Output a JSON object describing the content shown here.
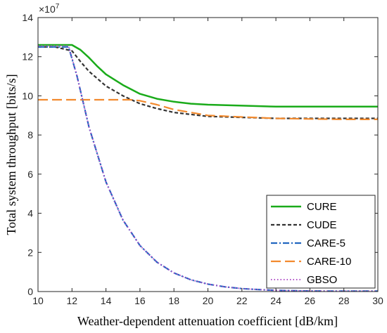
{
  "chart_data": {
    "type": "line",
    "xlabel": "Weather-dependent attenuation coefficient [dB/km]",
    "ylabel": "Total system throughput [bits/s]",
    "y_multiplier_base": "×10",
    "y_multiplier_exp": "7",
    "xlim": [
      10,
      30
    ],
    "ylim": [
      0,
      14
    ],
    "xticks": [
      10,
      12,
      14,
      16,
      18,
      20,
      22,
      24,
      26,
      28,
      30
    ],
    "yticks": [
      0,
      2,
      4,
      6,
      8,
      10,
      12,
      14
    ],
    "grid": false,
    "legend_placement": "bottom-right",
    "series": [
      {
        "name": "CURE",
        "color": "#1aab1a",
        "style": "solid",
        "x": [
          10,
          11,
          12,
          12.5,
          13,
          13.5,
          14,
          15,
          16,
          17,
          18,
          19,
          20,
          22,
          24,
          26,
          28,
          30
        ],
        "y": [
          12.6,
          12.6,
          12.6,
          12.35,
          11.95,
          11.5,
          11.1,
          10.55,
          10.1,
          9.85,
          9.7,
          9.6,
          9.55,
          9.5,
          9.45,
          9.45,
          9.45,
          9.45
        ]
      },
      {
        "name": "CUDE",
        "color": "#333333",
        "style": "dashed",
        "x": [
          10,
          11,
          12,
          12.5,
          13,
          14,
          15,
          16,
          17,
          18,
          19,
          20,
          22,
          24,
          26,
          28,
          30
        ],
        "y": [
          12.5,
          12.5,
          12.3,
          11.75,
          11.25,
          10.5,
          10.0,
          9.6,
          9.35,
          9.15,
          9.05,
          8.95,
          8.9,
          8.85,
          8.85,
          8.85,
          8.85
        ]
      },
      {
        "name": "CARE-5",
        "color": "#2166c0",
        "style": "dashdot",
        "x": [
          10,
          11,
          11.8,
          12.3,
          13,
          14,
          15,
          16,
          17,
          18,
          19,
          20,
          21,
          22,
          23,
          24,
          26,
          28,
          30
        ],
        "y": [
          12.5,
          12.5,
          12.5,
          11.0,
          8.4,
          5.6,
          3.65,
          2.35,
          1.5,
          0.95,
          0.6,
          0.38,
          0.24,
          0.15,
          0.1,
          0.06,
          0.03,
          0.02,
          0.02
        ]
      },
      {
        "name": "CARE-10",
        "color": "#f28a2e",
        "style": "longdash",
        "x": [
          10,
          12,
          14,
          15.5,
          16,
          17,
          18,
          19,
          20,
          22,
          24,
          26,
          28,
          30
        ],
        "y": [
          9.8,
          9.8,
          9.8,
          9.8,
          9.75,
          9.55,
          9.3,
          9.15,
          9.0,
          8.92,
          8.85,
          8.82,
          8.8,
          8.8
        ]
      },
      {
        "name": "GBSO",
        "color": "#b04fc8",
        "style": "dotted",
        "x": [
          10,
          11,
          11.8,
          12.3,
          13,
          14,
          15,
          16,
          17,
          18,
          19,
          20,
          21,
          22,
          23,
          24,
          26,
          28,
          30
        ],
        "y": [
          12.55,
          12.55,
          12.55,
          11.0,
          8.4,
          5.6,
          3.65,
          2.35,
          1.5,
          0.95,
          0.6,
          0.38,
          0.24,
          0.15,
          0.1,
          0.06,
          0.03,
          0.02,
          0.02
        ]
      }
    ]
  }
}
